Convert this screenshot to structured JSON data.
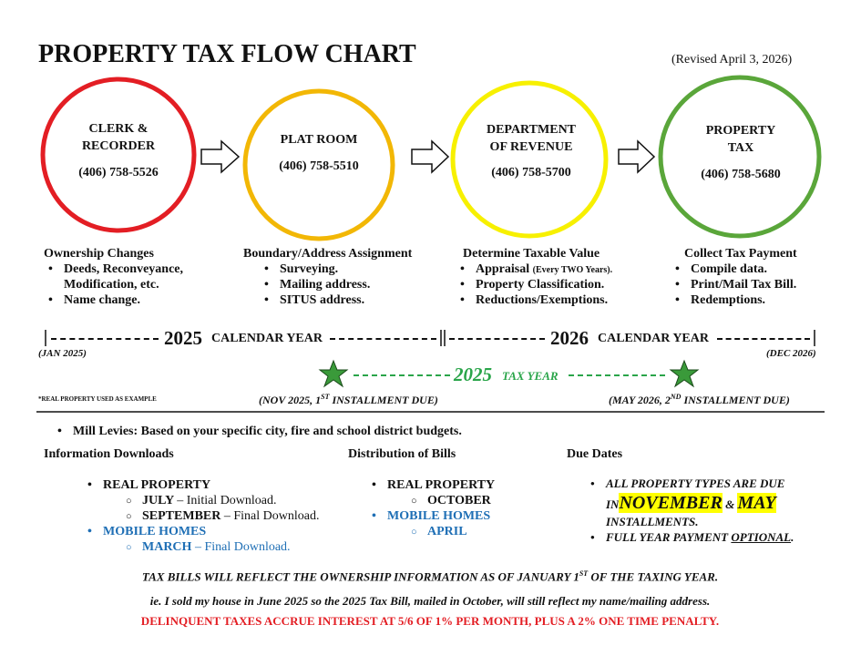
{
  "header": {
    "title": "PROPERTY TAX FLOW CHART",
    "revised": "(Revised April 3, 2026)"
  },
  "steps": [
    {
      "name": [
        "CLERK &",
        "RECORDER"
      ],
      "phone": "(406) 758-5526",
      "heading": "Ownership Changes",
      "items": [
        "Deeds, Reconveyance,",
        "Modification, etc.",
        "Name change."
      ]
    },
    {
      "name": [
        "PLAT ROOM"
      ],
      "phone": "(406) 758-5510",
      "heading": "Boundary/Address Assignment",
      "items": [
        "Surveying.",
        "Mailing address.",
        "SITUS address."
      ]
    },
    {
      "name": [
        "DEPARTMENT",
        "OF REVENUE"
      ],
      "phone": "(406) 758-5700",
      "heading": "Determine Taxable Value",
      "items": [
        "Appraisal",
        "Property Classification.",
        "Reductions/Exemptions."
      ],
      "item_note": "(Every TWO Years)."
    },
    {
      "name": [
        "PROPERTY",
        "TAX"
      ],
      "phone": "(406) 758-5680",
      "heading": "Collect Tax Payment",
      "items": [
        "Compile data.",
        "Print/Mail Tax Bill.",
        "Redemptions."
      ]
    }
  ],
  "timeline": {
    "calendar": [
      {
        "year": "2025",
        "label": "CALENDAR YEAR",
        "start": "(JAN 2025)"
      },
      {
        "year": "2026",
        "label": "CALENDAR YEAR",
        "end": "(DEC 2026)"
      }
    ],
    "tax_year": {
      "year": "2025",
      "label": "TAX YEAR"
    },
    "note": "*REAL PROPERTY USED AS EXAMPLE",
    "installments": [
      [
        "(NOV 2025, 1",
        "ST",
        "INSTALLMENT DUE)"
      ],
      [
        "(MAY 2026, 2",
        "ND",
        "INSTALLMENT DUE)"
      ]
    ]
  },
  "info": {
    "mill_levies": "Mill Levies: Based on your specific city, fire and school district budgets.",
    "downloads": {
      "heading": "Information Downloads",
      "real_property": "REAL PROPERTY",
      "real_items": [
        [
          "JULY",
          "– Initial Download."
        ],
        [
          "SEPTEMBER",
          "– Final Download."
        ]
      ],
      "mobile_homes": "MOBILE HOMES",
      "mobile_items": [
        [
          "MARCH",
          "– Final Download."
        ]
      ]
    },
    "distribution": {
      "heading": "Distribution of Bills",
      "real_property": "REAL PROPERTY",
      "real_month": "OCTOBER",
      "mobile_homes": "MOBILE HOMES",
      "mobile_month": "APRIL"
    },
    "due_dates": {
      "heading": "Due Dates",
      "line1": "ALL PROPERTY TYPES ARE DUE",
      "line2": [
        "IN",
        "NOVEMBER",
        "&",
        "MAY"
      ],
      "line3": "INSTALLMENTS.",
      "line4": [
        "FULL YEAR PAYMENT",
        "OPTIONAL",
        "."
      ]
    }
  },
  "footer": {
    "line1": [
      "TAX BILLS WILL REFLECT THE OWNERSHIP INFORMATION AS OF JANUARY 1",
      "ST",
      "OF THE TAXING YEAR."
    ],
    "line2": "ie. I sold my house in June 2025 so the 2025 Tax Bill, mailed in October, will still reflect my name/mailing address.",
    "line3": "DELINQUENT TAXES ACCRUE INTEREST AT 5/6 OF 1% PER MONTH, PLUS A 2% ONE TIME PENALTY."
  }
}
